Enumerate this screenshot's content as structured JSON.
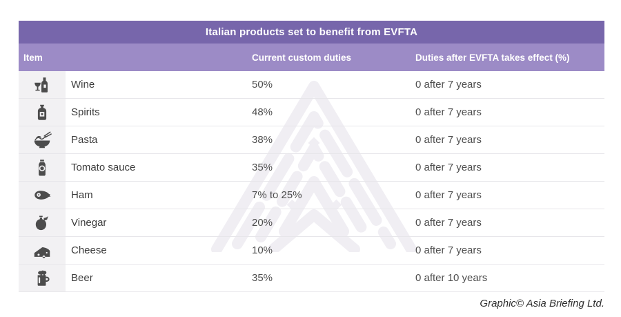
{
  "table": {
    "title": "Italian products set to benefit from EVFTA",
    "columns": [
      "Item",
      "Current custom duties",
      "Duties after EVFTA takes effect (%)"
    ],
    "rows": [
      {
        "icon": "wine-icon",
        "item": "Wine",
        "current": "50%",
        "after": "0 after 7 years"
      },
      {
        "icon": "spirits-icon",
        "item": "Spirits",
        "current": "48%",
        "after": "0 after 7 years"
      },
      {
        "icon": "pasta-icon",
        "item": "Pasta",
        "current": "38%",
        "after": "0 after 7 years"
      },
      {
        "icon": "tomato-sauce-icon",
        "item": "Tomato sauce",
        "current": "35%",
        "after": "0 after 7 years"
      },
      {
        "icon": "ham-icon",
        "item": "Ham",
        "current": "7% to 25%",
        "after": "0 after 7 years"
      },
      {
        "icon": "vinegar-icon",
        "item": "Vinegar",
        "current": "20%",
        "after": "0 after 7 years"
      },
      {
        "icon": "cheese-icon",
        "item": "Cheese",
        "current": "10%",
        "after": "0 after 7 years"
      },
      {
        "icon": "beer-icon",
        "item": "Beer",
        "current": "35%",
        "after": "0 after 10 years"
      }
    ]
  },
  "credit": "Graphic© Asia Briefing Ltd.",
  "colors": {
    "title_bg": "#7766ab",
    "header_bg": "#9c8bc6",
    "icon_strip_bg": "#f2f1f3",
    "row_border": "#e7e6ea",
    "icon": "#4c4c4c",
    "item_text": "#3c3c3c",
    "value_text": "#4e4e4e",
    "watermark": "#f0eef3",
    "credit_text": "#2e2e2e"
  },
  "chart_data": {
    "type": "table",
    "title": "Italian products set to benefit from EVFTA",
    "columns": [
      "Item",
      "Current custom duties",
      "Duties after EVFTA takes effect (%)"
    ],
    "rows": [
      [
        "Wine",
        "50%",
        "0 after 7 years"
      ],
      [
        "Spirits",
        "48%",
        "0 after 7 years"
      ],
      [
        "Pasta",
        "38%",
        "0 after 7 years"
      ],
      [
        "Tomato sauce",
        "35%",
        "0 after 7 years"
      ],
      [
        "Ham",
        "7% to 25%",
        "0 after 7 years"
      ],
      [
        "Vinegar",
        "20%",
        "0 after 7 years"
      ],
      [
        "Cheese",
        "10%",
        "0 after 7 years"
      ],
      [
        "Beer",
        "35%",
        "0 after 10 years"
      ]
    ]
  }
}
